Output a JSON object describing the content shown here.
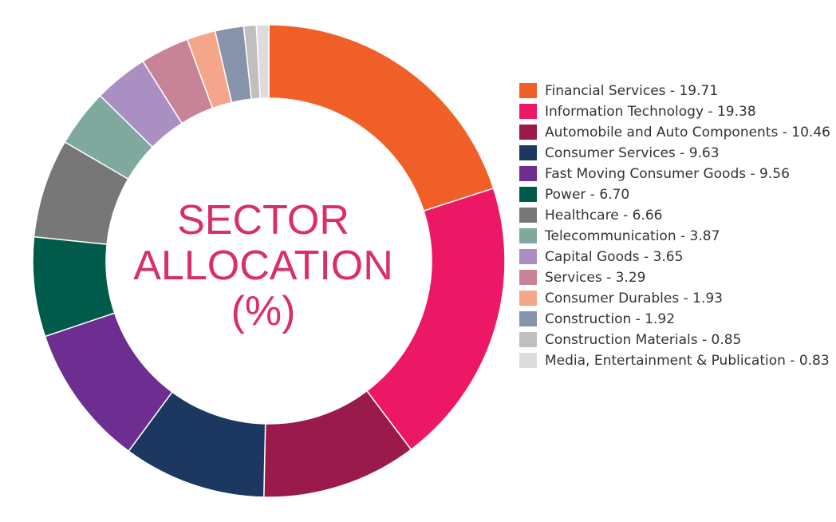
{
  "center_title": {
    "line1": "SECTOR",
    "line2": "ALLOCATION",
    "line3": "(%)"
  },
  "legend": [
    {
      "text": "Financial Services - 19.71",
      "color": "#f05f28"
    },
    {
      "text": "Information Technology - 19.38",
      "color": "#ec1765"
    },
    {
      "text": "Automobile and Auto Components - 10.46",
      "color": "#9a1a4c"
    },
    {
      "text": "Consumer Services - 9.63",
      "color": "#1c3760"
    },
    {
      "text": "Fast Moving Consumer Goods - 9.56",
      "color": "#6e2e91"
    },
    {
      "text": "Power - 6.70",
      "color": "#015b4b"
    },
    {
      "text": "Healthcare - 6.66",
      "color": "#777777"
    },
    {
      "text": "Telecommunication - 3.87",
      "color": "#7fa89e"
    },
    {
      "text": "Capital Goods - 3.65",
      "color": "#aa8fc2"
    },
    {
      "text": "Services - 3.29",
      "color": "#c88497"
    },
    {
      "text": "Consumer Durables - 1.93",
      "color": "#f5a58a"
    },
    {
      "text": "Construction - 1.92",
      "color": "#8793ab"
    },
    {
      "text": "Construction Materials - 0.85",
      "color": "#bfbfbf"
    },
    {
      "text": "Media, Entertainment & Publication - 0.83",
      "color": "#dcdcdc"
    }
  ],
  "chart_data": {
    "type": "pie",
    "donut": true,
    "title": "SECTOR ALLOCATION (%)",
    "categories": [
      "Financial Services",
      "Information Technology",
      "Automobile and Auto Components",
      "Consumer Services",
      "Fast Moving Consumer Goods",
      "Power",
      "Healthcare",
      "Telecommunication",
      "Capital Goods",
      "Services",
      "Consumer Durables",
      "Construction",
      "Construction Materials",
      "Media, Entertainment & Publication"
    ],
    "values": [
      19.71,
      19.38,
      10.46,
      9.63,
      9.56,
      6.7,
      6.66,
      3.87,
      3.65,
      3.29,
      1.93,
      1.92,
      0.85,
      0.83
    ],
    "colors": [
      "#f05f28",
      "#ec1765",
      "#9a1a4c",
      "#1c3760",
      "#6e2e91",
      "#015b4b",
      "#777777",
      "#7fa89e",
      "#aa8fc2",
      "#c88497",
      "#f5a58a",
      "#8793ab",
      "#bfbfbf",
      "#dcdcdc"
    ],
    "legend_position": "right"
  }
}
